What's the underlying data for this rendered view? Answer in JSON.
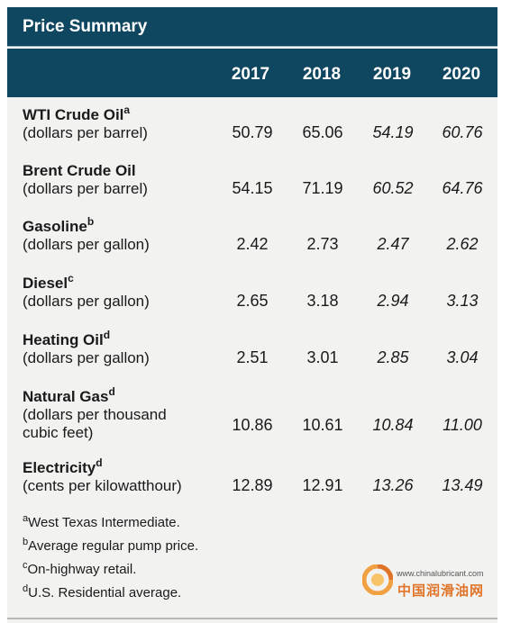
{
  "title": "Price Summary",
  "years": [
    "2017",
    "2018",
    "2019",
    "2020"
  ],
  "rows": [
    {
      "name": "WTI Crude Oil",
      "sup": "a",
      "unit": [
        "(dollars per barrel)"
      ],
      "values": [
        "50.79",
        "65.06",
        "54.19",
        "60.76"
      ]
    },
    {
      "name": "Brent Crude Oil",
      "sup": "",
      "unit": [
        "(dollars per barrel)"
      ],
      "values": [
        "54.15",
        "71.19",
        "60.52",
        "64.76"
      ]
    },
    {
      "name": "Gasoline",
      "sup": "b",
      "unit": [
        "(dollars per gallon)"
      ],
      "values": [
        "2.42",
        "2.73",
        "2.47",
        "2.62"
      ]
    },
    {
      "name": "Diesel",
      "sup": "c",
      "unit": [
        "(dollars per gallon)"
      ],
      "values": [
        "2.65",
        "3.18",
        "2.94",
        "3.13"
      ]
    },
    {
      "name": "Heating Oil",
      "sup": "d",
      "unit": [
        "(dollars per gallon)"
      ],
      "values": [
        "2.51",
        "3.01",
        "2.85",
        "3.04"
      ]
    },
    {
      "name": "Natural Gas",
      "sup": "d",
      "unit": [
        "(dollars per thousand",
        "cubic feet)"
      ],
      "values": [
        "10.86",
        "10.61",
        "10.84",
        "11.00"
      ]
    },
    {
      "name": "Electricity",
      "sup": "d",
      "unit": [
        "(cents per kilowatthour)"
      ],
      "values": [
        "12.89",
        "12.91",
        "13.26",
        "13.49"
      ]
    }
  ],
  "notes": [
    {
      "sup": "a",
      "text": "West Texas Intermediate."
    },
    {
      "sup": "b",
      "text": "Average regular pump price."
    },
    {
      "sup": "c",
      "text": "On-highway retail."
    },
    {
      "sup": "d",
      "text": "U.S. Residential average."
    }
  ],
  "watermark": {
    "url": "www.chinalubricant.com",
    "name": "中国润滑油网"
  },
  "colors": {
    "header_bg": "#0f4761",
    "panel_bg": "#f2f2f1",
    "watermark_accent": "#e0752a"
  }
}
